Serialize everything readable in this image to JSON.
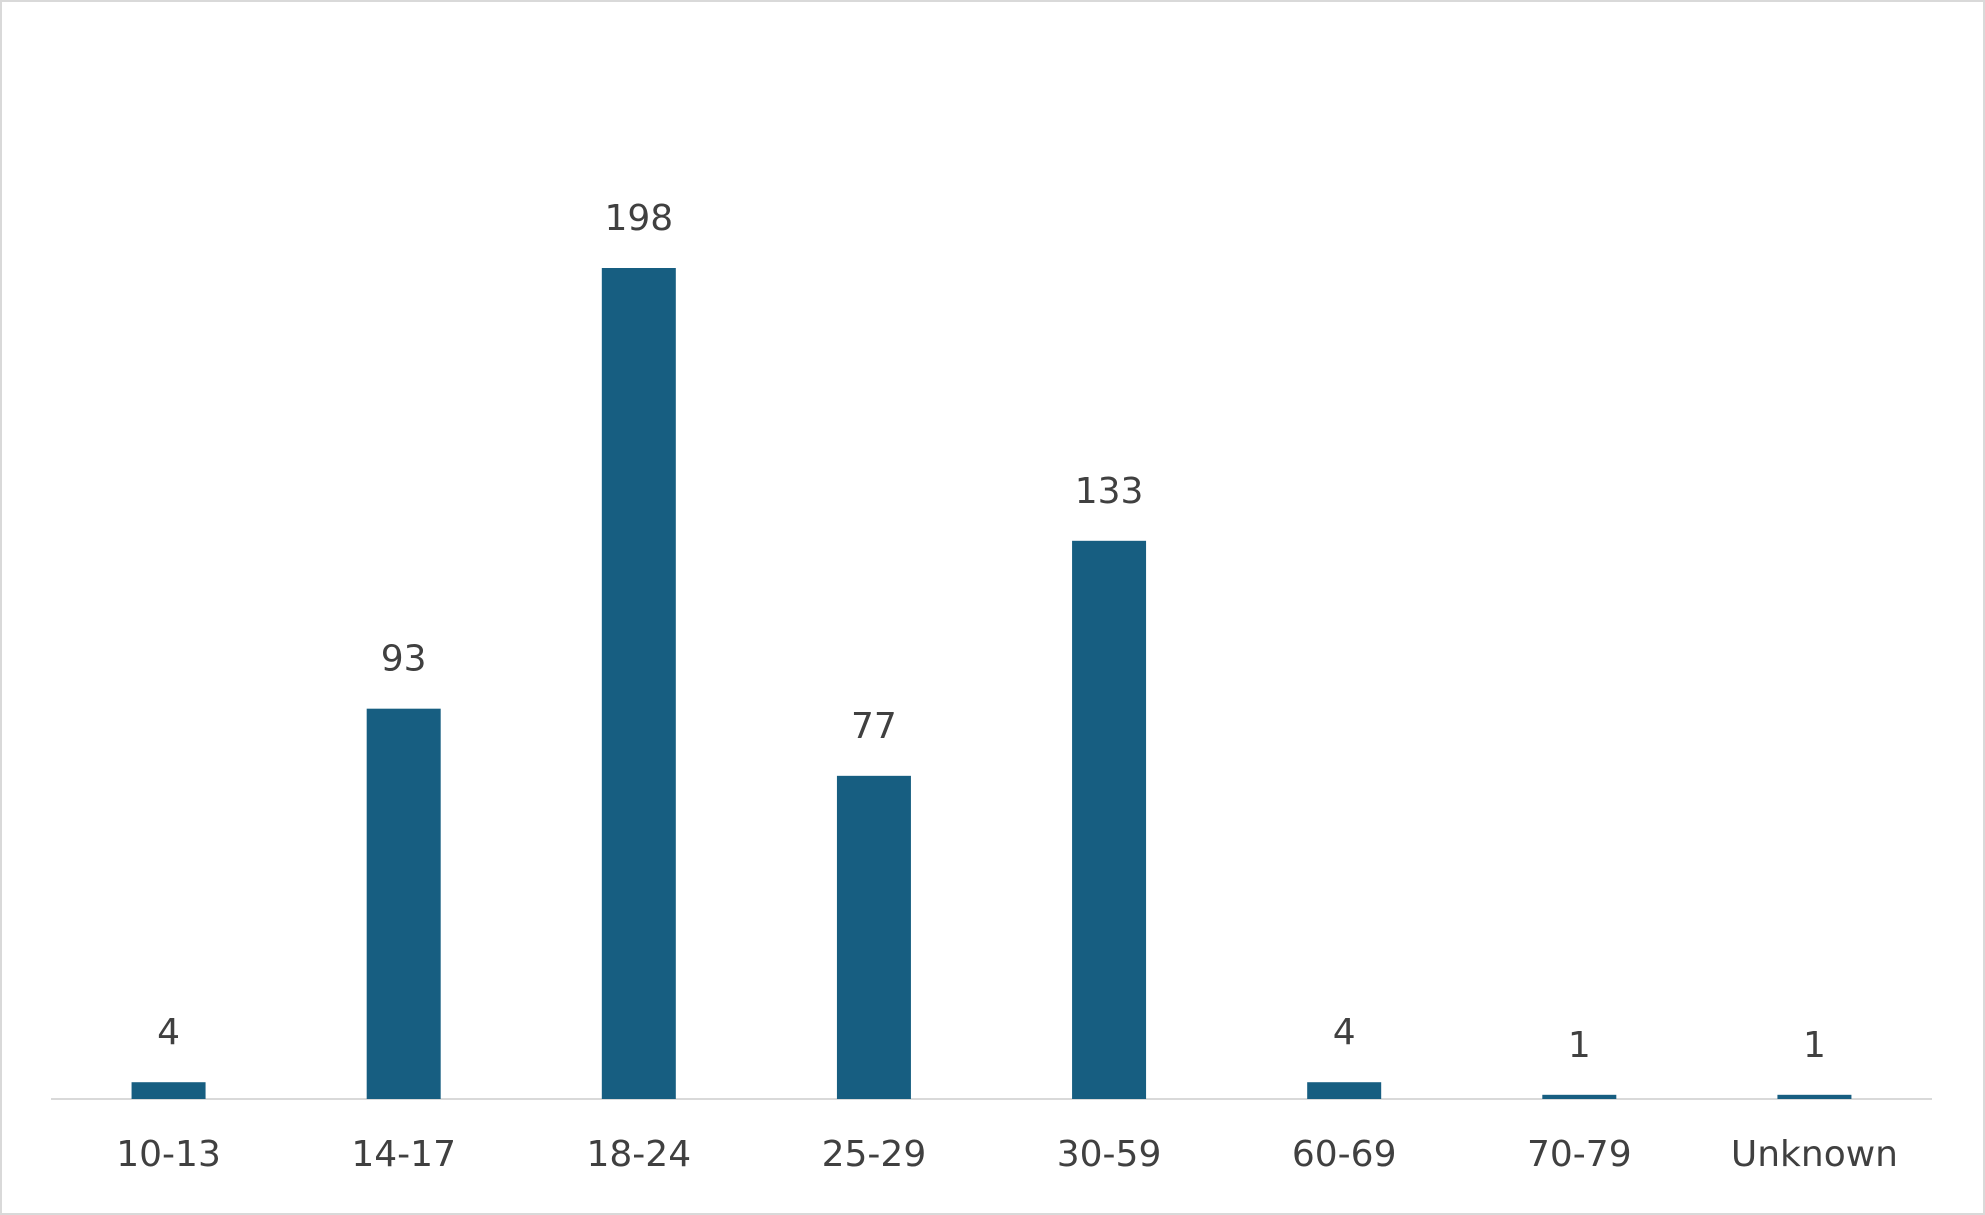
{
  "chart_data": {
    "type": "bar",
    "categories": [
      "10-13",
      "14-17",
      "18-24",
      "25-29",
      "30-59",
      "60-69",
      "70-79",
      "Unknown"
    ],
    "values": [
      4,
      93,
      198,
      77,
      133,
      4,
      1,
      1
    ],
    "color": "#175e81"
  }
}
